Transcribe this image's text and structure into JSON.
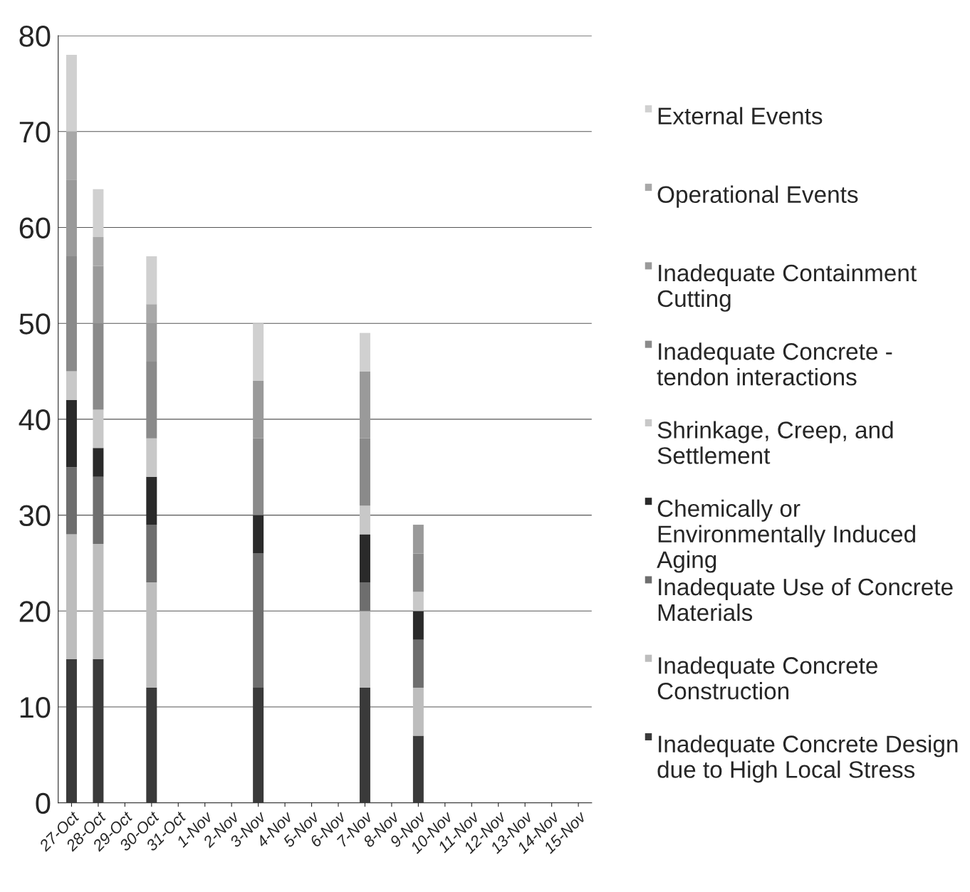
{
  "chart_data": {
    "type": "bar",
    "stacked": true,
    "categories": [
      "27-Oct",
      "28-Oct",
      "29-Oct",
      "30-Oct",
      "31-Oct",
      "1-Nov",
      "2-Nov",
      "3-Nov",
      "4-Nov",
      "5-Nov",
      "6-Nov",
      "7-Nov",
      "8-Nov",
      "9-Nov",
      "10-Nov",
      "11-Nov",
      "12-Nov",
      "13-Nov",
      "14-Nov",
      "15-Nov"
    ],
    "series": [
      {
        "name": "Inadequate Concrete Design due to High Local Stress",
        "color": "#3a3a3a",
        "values": [
          15,
          15,
          0,
          12,
          0,
          0,
          0,
          12,
          0,
          0,
          0,
          12,
          0,
          7,
          0,
          0,
          0,
          0,
          0,
          0
        ]
      },
      {
        "name": "Inadequate Concrete Construction",
        "color": "#bdbdbd",
        "values": [
          13,
          12,
          0,
          11,
          0,
          0,
          0,
          0,
          0,
          0,
          0,
          8,
          0,
          5,
          0,
          0,
          0,
          0,
          0,
          0
        ]
      },
      {
        "name": "Inadequate Use of Concrete Materials",
        "color": "#6e6e6e",
        "values": [
          7,
          7,
          0,
          6,
          0,
          0,
          0,
          14,
          0,
          0,
          0,
          3,
          0,
          5,
          0,
          0,
          0,
          0,
          0,
          0
        ]
      },
      {
        "name": "Chemically or Environmentally Induced Aging",
        "color": "#2a2a2a",
        "values": [
          7,
          3,
          0,
          5,
          0,
          0,
          0,
          4,
          0,
          0,
          0,
          5,
          0,
          3,
          0,
          0,
          0,
          0,
          0,
          0
        ]
      },
      {
        "name": "Shrinkage, Creep, and Settlement",
        "color": "#c8c8c8",
        "values": [
          3,
          4,
          0,
          4,
          0,
          0,
          0,
          0,
          0,
          0,
          0,
          3,
          0,
          2,
          0,
          0,
          0,
          0,
          0,
          0
        ]
      },
      {
        "name": "Inadequate Concrete - tendon interactions",
        "color": "#8a8a8a",
        "values": [
          12,
          9,
          0,
          8,
          0,
          0,
          0,
          8,
          0,
          0,
          0,
          7,
          0,
          4,
          0,
          0,
          0,
          0,
          0,
          0
        ]
      },
      {
        "name": "Inadequate Containment Cutting",
        "color": "#9a9a9a",
        "values": [
          8,
          6,
          0,
          4,
          0,
          0,
          0,
          6,
          0,
          0,
          0,
          7,
          0,
          3,
          0,
          0,
          0,
          0,
          0,
          0
        ]
      },
      {
        "name": "Operational Events",
        "color": "#a8a8a8",
        "values": [
          5,
          3,
          0,
          2,
          0,
          0,
          0,
          0,
          0,
          0,
          0,
          0,
          0,
          0,
          0,
          0,
          0,
          0,
          0,
          0
        ]
      },
      {
        "name": "External Events",
        "color": "#d0d0d0",
        "values": [
          8,
          5,
          0,
          5,
          0,
          0,
          0,
          6,
          0,
          0,
          0,
          4,
          0,
          0,
          0,
          0,
          0,
          0,
          0,
          0
        ]
      }
    ],
    "ylim": [
      0,
      80
    ],
    "yticks": [
      0,
      10,
      20,
      30,
      40,
      50,
      60,
      70,
      80
    ],
    "grid": "y",
    "legend": "right"
  }
}
